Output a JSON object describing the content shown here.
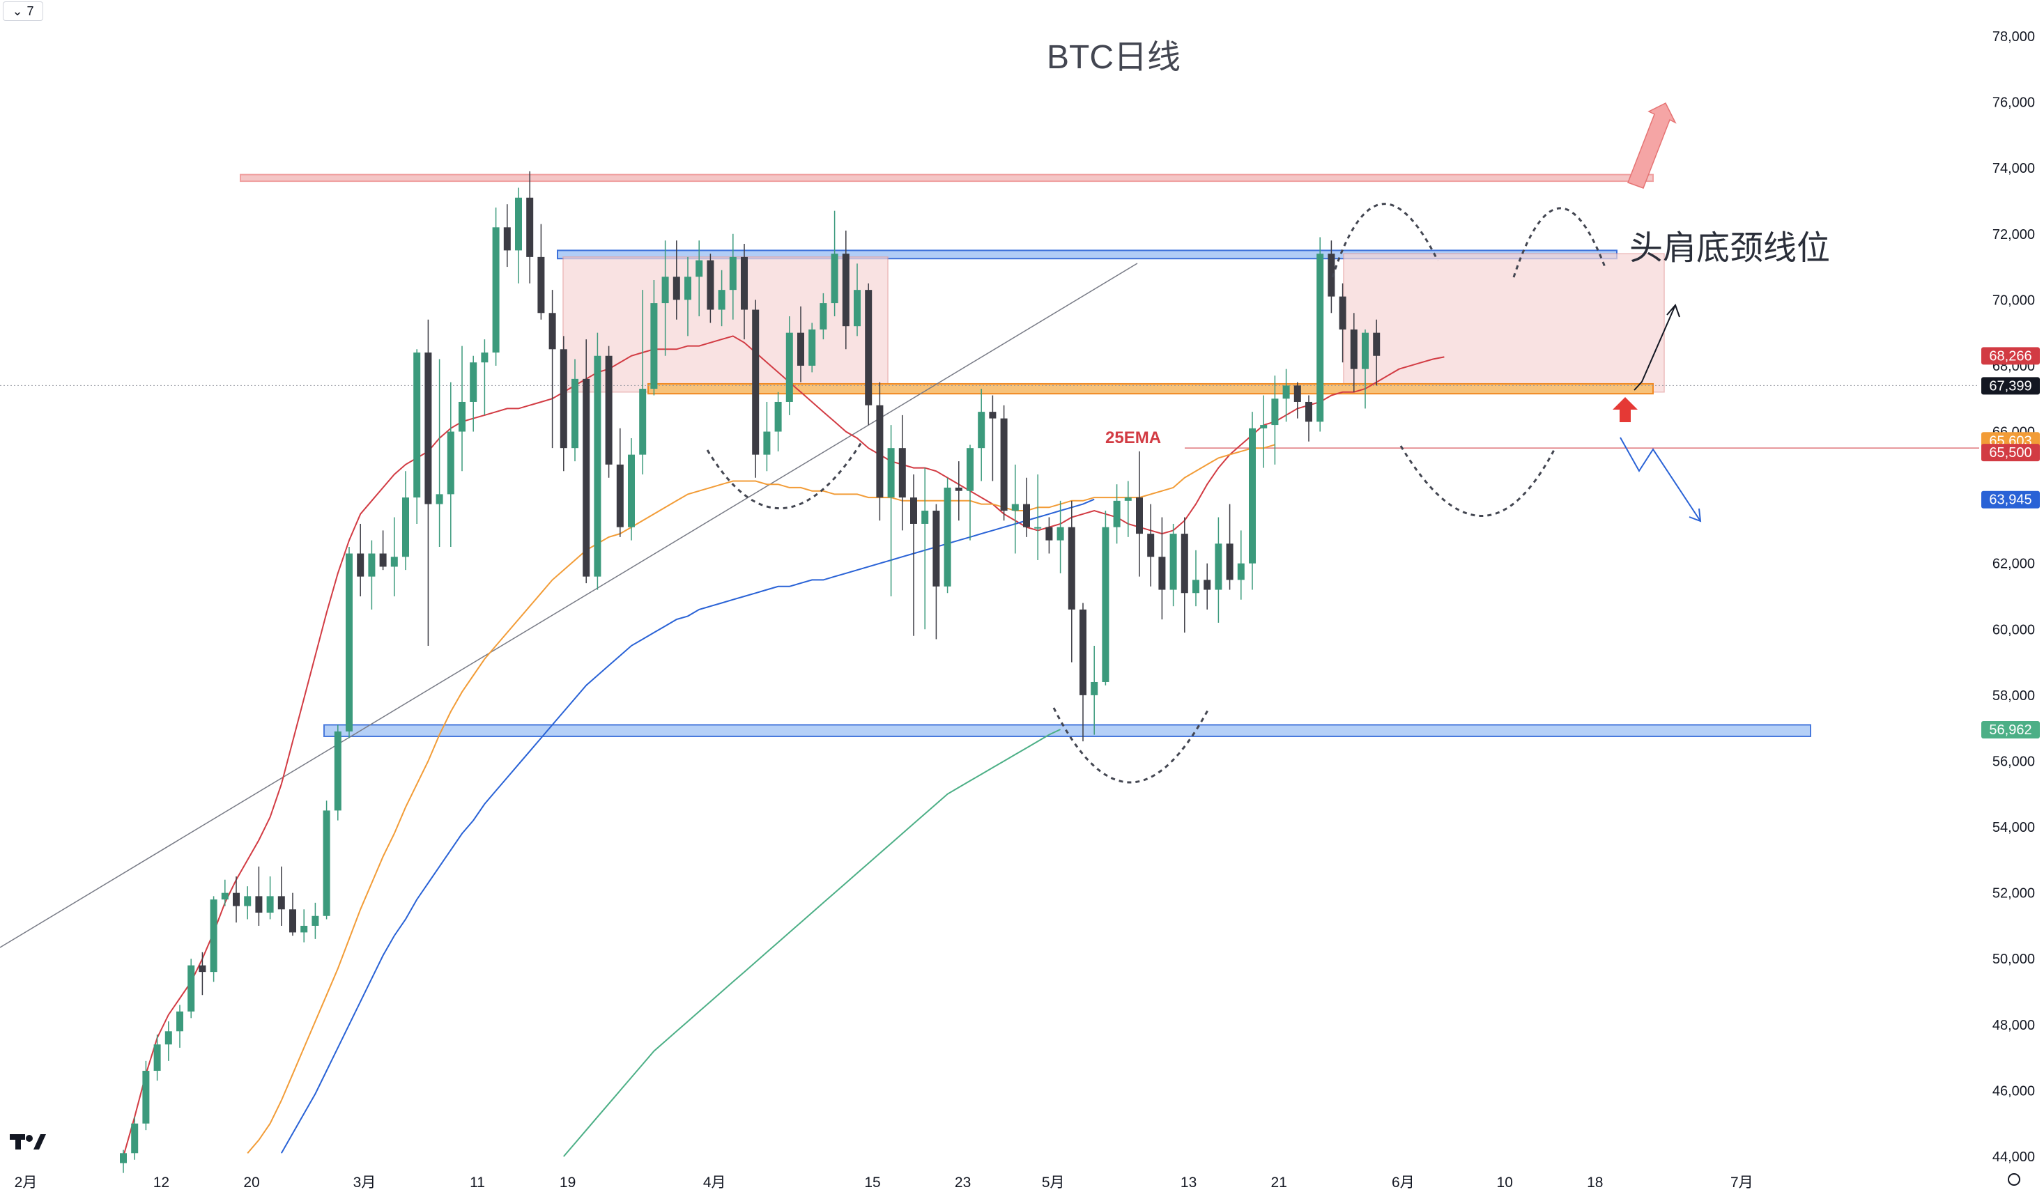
{
  "toolbar": {
    "interval": "7",
    "interval_arrow": "⌄"
  },
  "branding": {
    "logo_text": "17"
  },
  "annotations": {
    "head_shoulders": "头肩底颈线位",
    "ema": "25EMA"
  },
  "colors": {
    "up": "#3b9a7c",
    "down": "#3c3c44",
    "ema_red": "#d23b43",
    "ema_orange": "#f29c37",
    "ema_blue": "#2962d6",
    "ema_green": "#4caf86",
    "zone_pink": "#f4c6c6",
    "zone_blue": "#a9c8f6",
    "zone_orange": "#f7c27a"
  },
  "chart_data": {
    "type": "candlestick",
    "title": "BTC日线",
    "ylim": [
      43800,
      78500
    ],
    "y_ticks": [
      "44,000",
      "46,000",
      "48,000",
      "50,000",
      "52,000",
      "54,000",
      "56,000",
      "58,000",
      "60,000",
      "62,000",
      "64,000",
      "66,000",
      "68,000",
      "70,000",
      "72,000",
      "74,000",
      "76,000",
      "78,000"
    ],
    "y_tick_values": [
      44000,
      46000,
      48000,
      50000,
      52000,
      54000,
      56000,
      58000,
      60000,
      62000,
      64000,
      66000,
      68000,
      70000,
      72000,
      74000,
      76000,
      78000
    ],
    "x_ticks": [
      {
        "label": "2月",
        "index": -10
      },
      {
        "label": "12",
        "index": 2
      },
      {
        "label": "20",
        "index": 10
      },
      {
        "label": "3月",
        "index": 20
      },
      {
        "label": "11",
        "index": 30
      },
      {
        "label": "19",
        "index": 38
      },
      {
        "label": "4月",
        "index": 51
      },
      {
        "label": "15",
        "index": 65
      },
      {
        "label": "23",
        "index": 73
      },
      {
        "label": "5月",
        "index": 81
      },
      {
        "label": "13",
        "index": 93
      },
      {
        "label": "21",
        "index": 101
      },
      {
        "label": "6月",
        "index": 112
      },
      {
        "label": "10",
        "index": 121
      },
      {
        "label": "18",
        "index": 129
      },
      {
        "label": "7月",
        "index": 142
      }
    ],
    "price_badges": [
      {
        "label": "68,266",
        "value": 68266,
        "color": "#d23b43"
      },
      {
        "label": "67,399",
        "value": 67399,
        "color": "#131722"
      },
      {
        "label": "65,603",
        "value": 65603,
        "color": "#f29c37"
      },
      {
        "label": "65,500",
        "value": 65500,
        "color": "#d23b43"
      },
      {
        "label": "63,945",
        "value": 63945,
        "color": "#2962d6"
      },
      {
        "label": "56,962",
        "value": 56962,
        "color": "#4caf86"
      }
    ],
    "series": [
      {
        "name": "25EMA",
        "color": "#d23b43",
        "values": [
          44000,
          45200,
          46500,
          47600,
          48300,
          48800,
          49300,
          50000,
          50800,
          51700,
          52400,
          53000,
          53600,
          54300,
          55300,
          56600,
          57900,
          59200,
          60500,
          61700,
          62700,
          63500,
          63900,
          64300,
          64700,
          65000,
          65200,
          65400,
          65800,
          66100,
          66300,
          66400,
          66500,
          66600,
          66700,
          66700,
          66800,
          66900,
          67000,
          67200,
          67400,
          67600,
          67800,
          67900,
          68100,
          68300,
          68400,
          68500,
          68500,
          68500,
          68600,
          68600,
          68700,
          68800,
          68900,
          68700,
          68400,
          68100,
          67800,
          67500,
          67200,
          66900,
          66600,
          66300,
          66000,
          65800,
          65500,
          65300,
          65100,
          65000,
          64900,
          64900,
          64800,
          64600,
          64400,
          64200,
          64000,
          63800,
          63500,
          63300,
          63100,
          63000,
          63100,
          63200,
          63400,
          63500,
          63600,
          63500,
          63400,
          63200,
          63100,
          63000,
          62900,
          63000,
          63300,
          63800,
          64400,
          64900,
          65300,
          65600,
          65900,
          66200,
          66300,
          66500,
          66700,
          66800,
          66900,
          67100,
          67200,
          67200,
          67300,
          67500,
          67700,
          67900,
          68000,
          68100,
          68200,
          68266
        ]
      },
      {
        "name": "",
        "color": "#f29c37",
        "values": [
          null,
          null,
          null,
          null,
          null,
          null,
          null,
          null,
          null,
          null,
          null,
          44100,
          44500,
          45000,
          45700,
          46500,
          47300,
          48100,
          48900,
          49700,
          50600,
          51500,
          52300,
          53100,
          53800,
          54600,
          55300,
          56000,
          56800,
          57500,
          58100,
          58600,
          59100,
          59500,
          59900,
          60300,
          60700,
          61100,
          61500,
          61800,
          62100,
          62400,
          62600,
          62800,
          62900,
          63100,
          63300,
          63500,
          63700,
          63900,
          64100,
          64200,
          64300,
          64400,
          64500,
          64500,
          64500,
          64400,
          64400,
          64300,
          64300,
          64200,
          64200,
          64100,
          64100,
          64100,
          64000,
          64000,
          64000,
          63900,
          63900,
          63900,
          63900,
          63900,
          63900,
          63900,
          63800,
          63800,
          63700,
          63600,
          63600,
          63700,
          63700,
          63800,
          63900,
          63900,
          64000,
          64000,
          64000,
          64000,
          64000,
          64100,
          64200,
          64300,
          64600,
          64800,
          65000,
          65200,
          65300,
          65400,
          65500,
          65500,
          65603
        ]
      },
      {
        "name": "",
        "color": "#2962d6",
        "values": [
          null,
          null,
          null,
          null,
          null,
          null,
          null,
          null,
          null,
          null,
          null,
          null,
          null,
          null,
          44100,
          44700,
          45300,
          45900,
          46600,
          47300,
          48000,
          48700,
          49400,
          50100,
          50700,
          51200,
          51800,
          52300,
          52800,
          53300,
          53800,
          54200,
          54700,
          55100,
          55500,
          55900,
          56300,
          56700,
          57100,
          57500,
          57900,
          58300,
          58600,
          58900,
          59200,
          59500,
          59700,
          59900,
          60100,
          60300,
          60400,
          60600,
          60700,
          60800,
          60900,
          61000,
          61100,
          61200,
          61300,
          61300,
          61400,
          61500,
          61500,
          61600,
          61700,
          61800,
          61900,
          62000,
          62100,
          62200,
          62300,
          62400,
          62500,
          62600,
          62700,
          62800,
          62900,
          63000,
          63100,
          63200,
          63300,
          63400,
          63500,
          63600,
          63700,
          63800,
          63945
        ]
      },
      {
        "name": "",
        "color": "#4caf86",
        "values": [
          null,
          null,
          null,
          null,
          null,
          null,
          null,
          null,
          null,
          null,
          null,
          null,
          null,
          null,
          null,
          null,
          null,
          null,
          null,
          null,
          null,
          null,
          null,
          null,
          null,
          null,
          null,
          null,
          null,
          null,
          null,
          null,
          null,
          null,
          null,
          null,
          null,
          null,
          null,
          44000,
          44400,
          44800,
          45200,
          45600,
          46000,
          46400,
          46800,
          47200,
          47500,
          47800,
          48100,
          48400,
          48700,
          49000,
          49300,
          49600,
          49900,
          50200,
          50500,
          50800,
          51100,
          51400,
          51700,
          52000,
          52300,
          52600,
          52900,
          53200,
          53500,
          53800,
          54100,
          54400,
          54700,
          55000,
          55200,
          55400,
          55600,
          55800,
          56000,
          56200,
          56400,
          56600,
          56800,
          56962
        ]
      }
    ],
    "candles": [
      [
        43800,
        44200,
        43500,
        44100
      ],
      [
        44100,
        45200,
        43900,
        45000
      ],
      [
        45000,
        46900,
        44800,
        46600
      ],
      [
        46600,
        47700,
        46300,
        47400
      ],
      [
        47400,
        48100,
        46900,
        47800
      ],
      [
        47800,
        48600,
        47300,
        48400
      ],
      [
        48400,
        50000,
        48200,
        49800
      ],
      [
        49800,
        50200,
        48900,
        49600
      ],
      [
        49600,
        51900,
        49300,
        51800
      ],
      [
        51800,
        52400,
        51600,
        52000
      ],
      [
        52000,
        52500,
        51100,
        51600
      ],
      [
        51600,
        52200,
        51200,
        51900
      ],
      [
        51900,
        52800,
        51000,
        51400
      ],
      [
        51400,
        52500,
        51200,
        51900
      ],
      [
        51900,
        52800,
        51000,
        51500
      ],
      [
        51500,
        52000,
        50700,
        50800
      ],
      [
        50800,
        51500,
        50500,
        51000
      ],
      [
        51000,
        51700,
        50600,
        51300
      ],
      [
        51300,
        54800,
        51200,
        54500
      ],
      [
        54500,
        57100,
        54200,
        56900
      ],
      [
        56900,
        62500,
        56700,
        62300
      ],
      [
        62300,
        63200,
        61000,
        61600
      ],
      [
        61600,
        62700,
        60600,
        62300
      ],
      [
        62300,
        63000,
        61800,
        61900
      ],
      [
        61900,
        63400,
        61000,
        62200
      ],
      [
        62200,
        64800,
        61800,
        64000
      ],
      [
        64000,
        68500,
        63200,
        68400
      ],
      [
        68400,
        69400,
        59500,
        63800
      ],
      [
        63800,
        68200,
        62500,
        64100
      ],
      [
        64100,
        67500,
        62500,
        66000
      ],
      [
        66000,
        68600,
        64800,
        66900
      ],
      [
        66900,
        68300,
        66000,
        68100
      ],
      [
        68100,
        68800,
        66500,
        68400
      ],
      [
        68400,
        72800,
        68000,
        72200
      ],
      [
        72200,
        72900,
        71000,
        71500
      ],
      [
        71500,
        73400,
        70500,
        73100
      ],
      [
        73100,
        73900,
        70500,
        71300
      ],
      [
        71300,
        72300,
        69400,
        69600
      ],
      [
        69600,
        70300,
        65500,
        68500
      ],
      [
        68500,
        68900,
        64800,
        65500
      ],
      [
        65500,
        68200,
        65100,
        67600
      ],
      [
        67600,
        68800,
        61400,
        61600
      ],
      [
        61600,
        69000,
        61200,
        68300
      ],
      [
        68300,
        68600,
        64600,
        65000
      ],
      [
        65000,
        66100,
        62800,
        63100
      ],
      [
        63100,
        65800,
        62700,
        65300
      ],
      [
        65300,
        70300,
        64700,
        67300
      ],
      [
        67300,
        70600,
        67100,
        69900
      ],
      [
        69900,
        71800,
        68300,
        70700
      ],
      [
        70700,
        71800,
        69400,
        70000
      ],
      [
        70000,
        71300,
        68900,
        70700
      ],
      [
        70700,
        71800,
        69500,
        71200
      ],
      [
        71200,
        71400,
        69300,
        69700
      ],
      [
        69700,
        70900,
        69200,
        70300
      ],
      [
        70300,
        72000,
        69400,
        71300
      ],
      [
        71300,
        71700,
        68800,
        69700
      ],
      [
        69700,
        70000,
        64600,
        65300
      ],
      [
        65300,
        66900,
        64800,
        66000
      ],
      [
        66000,
        67200,
        65400,
        66900
      ],
      [
        66900,
        69500,
        66500,
        69000
      ],
      [
        69000,
        69800,
        67500,
        68000
      ],
      [
        68000,
        69300,
        67800,
        69100
      ],
      [
        69100,
        70200,
        68800,
        69900
      ],
      [
        69900,
        72700,
        69500,
        71400
      ],
      [
        71400,
        72100,
        68500,
        69200
      ],
      [
        69200,
        71100,
        68900,
        70300
      ],
      [
        70300,
        70500,
        66200,
        66800
      ],
      [
        66800,
        67500,
        63300,
        64000
      ],
      [
        64000,
        66200,
        61000,
        65500
      ],
      [
        65500,
        66500,
        63000,
        64000
      ],
      [
        64000,
        64700,
        59800,
        63200
      ],
      [
        63200,
        64900,
        60000,
        63600
      ],
      [
        63600,
        63800,
        59700,
        61300
      ],
      [
        61300,
        64600,
        61100,
        64300
      ],
      [
        64300,
        65100,
        63300,
        64200
      ],
      [
        64200,
        65600,
        62700,
        65500
      ],
      [
        65500,
        67300,
        64500,
        66600
      ],
      [
        66600,
        67100,
        64500,
        66400
      ],
      [
        66400,
        66800,
        63300,
        63600
      ],
      [
        63600,
        65000,
        62300,
        63800
      ],
      [
        63800,
        64600,
        62800,
        63100
      ],
      [
        63100,
        64700,
        62100,
        63100
      ],
      [
        63100,
        63400,
        62300,
        62700
      ],
      [
        62700,
        63900,
        61700,
        63100
      ],
      [
        63100,
        63900,
        59000,
        60600
      ],
      [
        60600,
        60800,
        56600,
        58000
      ],
      [
        58000,
        59500,
        56800,
        58400
      ],
      [
        58400,
        63600,
        58300,
        63100
      ],
      [
        63100,
        64400,
        62600,
        63900
      ],
      [
        63900,
        64500,
        62800,
        64000
      ],
      [
        64000,
        65400,
        61600,
        62900
      ],
      [
        62900,
        63800,
        61300,
        62200
      ],
      [
        62200,
        63400,
        60300,
        61200
      ],
      [
        61200,
        63200,
        60700,
        62900
      ],
      [
        62900,
        63400,
        59900,
        61100
      ],
      [
        61100,
        62400,
        60700,
        61500
      ],
      [
        61500,
        62000,
        60600,
        61200
      ],
      [
        61200,
        63400,
        60200,
        62600
      ],
      [
        62600,
        63800,
        61200,
        61500
      ],
      [
        61500,
        63000,
        60900,
        62000
      ],
      [
        62000,
        66600,
        61200,
        66100
      ],
      [
        66100,
        67100,
        64900,
        66200
      ],
      [
        66200,
        67700,
        65000,
        67000
      ],
      [
        67000,
        67900,
        66300,
        67400
      ],
      [
        67400,
        67500,
        66400,
        66900
      ],
      [
        66900,
        67100,
        65700,
        66300
      ],
      [
        66300,
        71900,
        66000,
        71400
      ],
      [
        71400,
        71800,
        69600,
        70100
      ],
      [
        70100,
        70500,
        68100,
        69100
      ],
      [
        69100,
        69600,
        67200,
        67900
      ],
      [
        67900,
        69100,
        66700,
        69000
      ],
      [
        69000,
        69400,
        67400,
        68300
      ]
    ]
  }
}
